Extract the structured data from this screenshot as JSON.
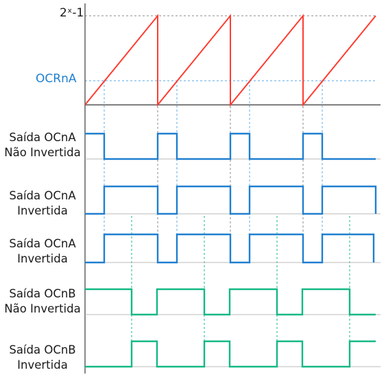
{
  "diagram": {
    "y_axis_labels": {
      "top": "2ˣ-1",
      "compare": "OCRnA"
    },
    "colors": {
      "sawtooth": "#ff3b30",
      "output_a": "#1f7fd0",
      "output_b": "#14b885",
      "guide_compare": "#5aa9e6",
      "guide_top": "#8a8a8a",
      "axis": "#555555"
    },
    "timing": {
      "periods": 4,
      "compare_fraction": 0.27,
      "top_fraction": 1.0
    },
    "rows": [
      {
        "line1": "Saída OCnA",
        "line2": "Não Invertida",
        "signal": "A",
        "inverted": false
      },
      {
        "line1": "Saída OCnA",
        "line2": "Invertida",
        "signal": "A",
        "inverted": true
      },
      {
        "line1": "Saída OCnA",
        "line2": "Invertida",
        "signal": "A",
        "inverted": true
      },
      {
        "line1": "Saída OCnB",
        "line2": "Não Invertida",
        "signal": "B",
        "inverted": false
      },
      {
        "line1": "Saída OCnB",
        "line2": "Invertida",
        "signal": "B",
        "inverted": true
      }
    ]
  }
}
